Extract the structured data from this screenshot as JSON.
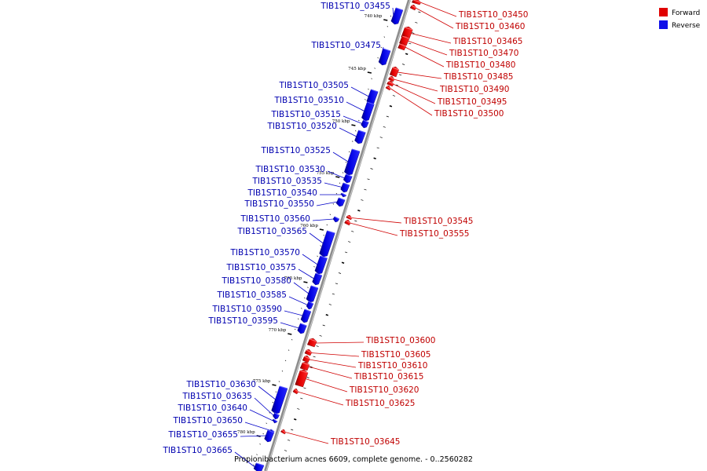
{
  "legend": {
    "forward_label": "Forward",
    "reverse_label": "Reverse"
  },
  "colors": {
    "forward": "#e00000",
    "forward_dark": "#8a0000",
    "reverse": "#1010e8",
    "reverse_dark": "#000090",
    "axis": "#909090"
  },
  "caption": "Propionibacterium acnes 6609, complete genome. - 0..2560282",
  "kbp_ticks": [
    "740 kbp",
    "745 kbp",
    "750 kbp",
    "755 kbp",
    "760 kbp",
    "765 kbp",
    "770 kbp",
    "775 kbp",
    "780 kbp"
  ],
  "reverse_genes": [
    "TIB1ST10_03455",
    "TIB1ST10_03475",
    "TIB1ST10_03505",
    "TIB1ST10_03510",
    "TIB1ST10_03515",
    "TIB1ST10_03520",
    "TIB1ST10_03525",
    "TIB1ST10_03530",
    "TIB1ST10_03535",
    "TIB1ST10_03540",
    "TIB1ST10_03550",
    "TIB1ST10_03560",
    "TIB1ST10_03565",
    "TIB1ST10_03570",
    "TIB1ST10_03575",
    "TIB1ST10_03580",
    "TIB1ST10_03585",
    "TIB1ST10_03590",
    "TIB1ST10_03595",
    "TIB1ST10_03630",
    "TIB1ST10_03635",
    "TIB1ST10_03640",
    "TIB1ST10_03650",
    "TIB1ST10_03655",
    "TIB1ST10_03665"
  ],
  "forward_genes": [
    "TIB1ST10_03450",
    "TIB1ST10_03460",
    "TIB1ST10_03465",
    "TIB1ST10_03470",
    "TIB1ST10_03480",
    "TIB1ST10_03485",
    "TIB1ST10_03490",
    "TIB1ST10_03495",
    "TIB1ST10_03500",
    "TIB1ST10_03545",
    "TIB1ST10_03555",
    "TIB1ST10_03600",
    "TIB1ST10_03605",
    "TIB1ST10_03610",
    "TIB1ST10_03615",
    "TIB1ST10_03620",
    "TIB1ST10_03625",
    "TIB1ST10_03645"
  ]
}
